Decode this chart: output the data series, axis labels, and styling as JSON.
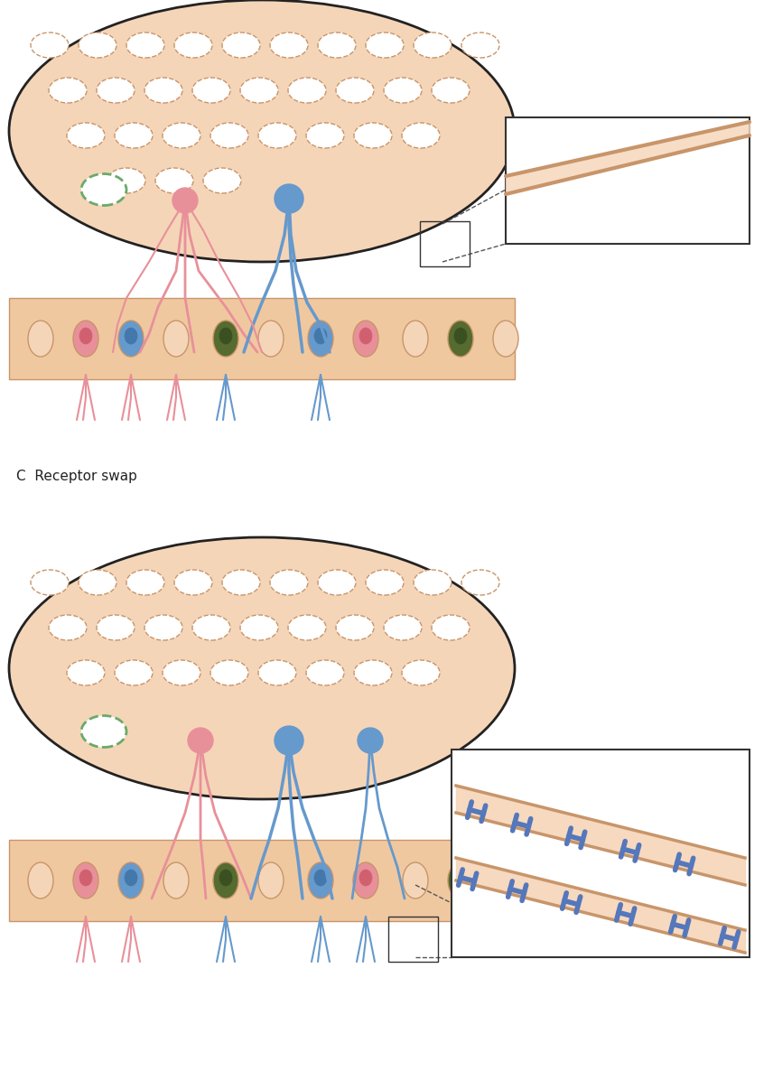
{
  "bg_color": "#ffffff",
  "skin_color": "#f5d5b8",
  "skin_border": "#c8956a",
  "cell_body_color": "#f5d5b8",
  "pink_neuron": "#e8909a",
  "blue_neuron": "#6699cc",
  "green_neuron": "#6aaa6a",
  "olive_neuron": "#556b2f",
  "label_c": "C  Receptor swap",
  "label_fontsize": 11
}
